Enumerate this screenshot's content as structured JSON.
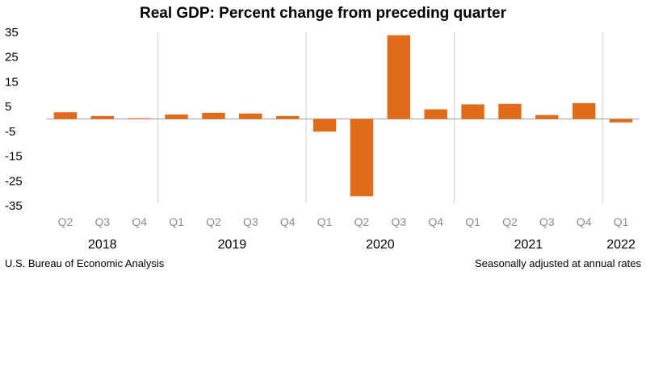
{
  "chart_data": {
    "type": "bar",
    "title": "Real GDP:  Percent change from preceding quarter",
    "categories": [
      "Q2",
      "Q3",
      "Q4",
      "Q1",
      "Q2",
      "Q3",
      "Q4",
      "Q1",
      "Q2",
      "Q3",
      "Q4",
      "Q1",
      "Q2",
      "Q3",
      "Q4",
      "Q1"
    ],
    "years": [
      {
        "label": "2018",
        "start": 0,
        "end": 2
      },
      {
        "label": "2019",
        "start": 3,
        "end": 6
      },
      {
        "label": "2020",
        "start": 7,
        "end": 10
      },
      {
        "label": "2021",
        "start": 11,
        "end": 14
      },
      {
        "label": "2022",
        "start": 15,
        "end": 15
      }
    ],
    "values": [
      2.7,
      1.2,
      0.3,
      1.8,
      2.5,
      2.2,
      1.2,
      -5.1,
      -31.2,
      33.8,
      3.9,
      5.9,
      6.1,
      1.6,
      6.4,
      -1.4
    ],
    "ylim": [
      -35,
      35
    ],
    "yticks": [
      35,
      25,
      15,
      5,
      -5,
      -15,
      -25,
      -35
    ],
    "bar_color": "#e26a1b",
    "grid": false,
    "source": "U.S. Bureau of Economic Analysis",
    "note": "Seasonally adjusted at annual rates"
  }
}
